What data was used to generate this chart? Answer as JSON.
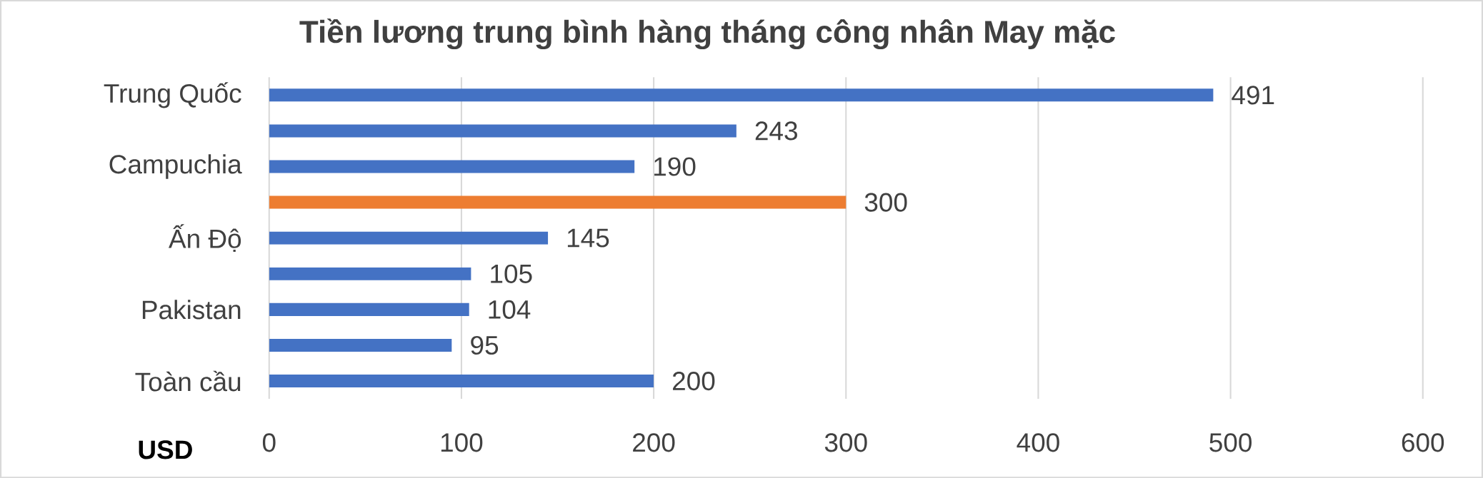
{
  "chart_data": {
    "type": "bar",
    "orientation": "horizontal",
    "title": "Tiền lương trung bình hàng tháng công nhân May mặc",
    "xlabel": "USD",
    "categories": [
      "Trung Quốc",
      null,
      "Campuchia",
      null,
      "Ấn Độ",
      null,
      "Pakistan",
      null,
      "Toàn cầu"
    ],
    "values": [
      491,
      243,
      190,
      300,
      145,
      105,
      104,
      95,
      200
    ],
    "colors": [
      "#4472c4",
      "#4472c4",
      "#4472c4",
      "#ed7d31",
      "#4472c4",
      "#4472c4",
      "#4472c4",
      "#4472c4",
      "#4472c4"
    ],
    "xlim": [
      0,
      600
    ],
    "xticks": [
      0,
      100,
      200,
      300,
      400,
      500,
      600
    ],
    "grid": "x",
    "data_labels": true
  }
}
